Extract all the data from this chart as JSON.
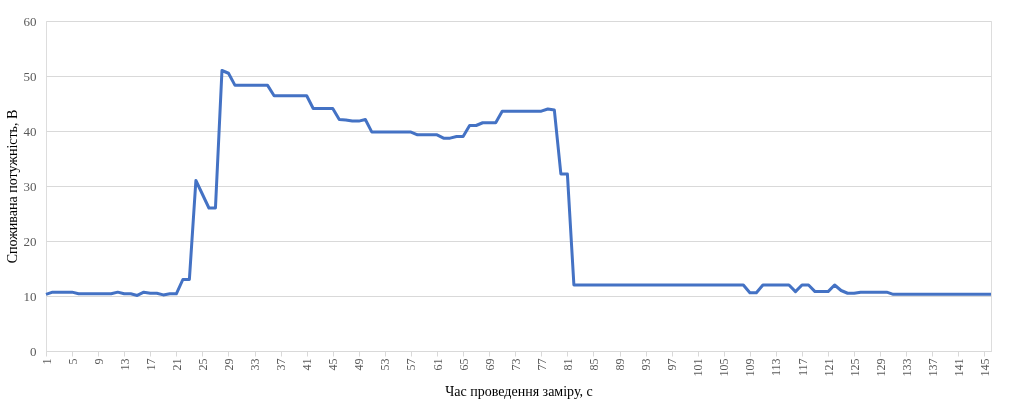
{
  "chart_data": {
    "type": "line",
    "xlabel": "Час проведення заміру, с",
    "ylabel": "Споживана потужність, В",
    "x": [
      1,
      2,
      3,
      4,
      5,
      6,
      7,
      8,
      9,
      10,
      11,
      12,
      13,
      14,
      15,
      16,
      17,
      18,
      19,
      20,
      21,
      22,
      23,
      24,
      25,
      26,
      27,
      28,
      29,
      30,
      31,
      32,
      33,
      34,
      35,
      36,
      37,
      38,
      39,
      40,
      41,
      42,
      43,
      44,
      45,
      46,
      47,
      48,
      49,
      50,
      51,
      52,
      53,
      54,
      55,
      56,
      57,
      58,
      59,
      60,
      61,
      62,
      63,
      64,
      65,
      66,
      67,
      68,
      69,
      70,
      71,
      72,
      73,
      74,
      75,
      76,
      77,
      78,
      79,
      80,
      81,
      82,
      83,
      84,
      85,
      86,
      87,
      88,
      89,
      90,
      91,
      92,
      93,
      94,
      95,
      96,
      97,
      98,
      99,
      100,
      101,
      102,
      103,
      104,
      105,
      106,
      107,
      108,
      109,
      110,
      111,
      112,
      113,
      114,
      115,
      116,
      117,
      118,
      119,
      120,
      121,
      122,
      123,
      124,
      125,
      126,
      127,
      128,
      129,
      130,
      131,
      132,
      133,
      134,
      135,
      136,
      137,
      138,
      139,
      140,
      141,
      142,
      143,
      144,
      145,
      146
    ],
    "series": [
      {
        "color": "#4472c4",
        "values": [
          10.3,
          10.7,
          10.7,
          10.7,
          10.7,
          10.4,
          10.4,
          10.4,
          10.4,
          10.4,
          10.4,
          10.7,
          10.4,
          10.4,
          10.1,
          10.7,
          10.5,
          10.5,
          10.2,
          10.4,
          10.4,
          13,
          13,
          31,
          28.5,
          26,
          26,
          51,
          50.5,
          48.3,
          48.3,
          48.3,
          48.3,
          48.3,
          48.3,
          46.4,
          46.4,
          46.4,
          46.4,
          46.4,
          46.4,
          44.1,
          44.1,
          44.1,
          44.1,
          42.1,
          42,
          41.8,
          41.8,
          42.1,
          39.8,
          39.8,
          39.8,
          39.8,
          39.8,
          39.8,
          39.8,
          39.3,
          39.3,
          39.3,
          39.3,
          38.7,
          38.7,
          39,
          39,
          41,
          41,
          41.5,
          41.5,
          41.5,
          43.6,
          43.6,
          43.6,
          43.6,
          43.6,
          43.6,
          43.6,
          44,
          43.8,
          32.2,
          32.2,
          12,
          12,
          12,
          12,
          12,
          12,
          12,
          12,
          12,
          12,
          12,
          12,
          12,
          12,
          12,
          12,
          12,
          12,
          12,
          12,
          12,
          12,
          12,
          12,
          12,
          12,
          12,
          10.6,
          10.6,
          12,
          12,
          12,
          12,
          12,
          10.8,
          12,
          12,
          10.8,
          10.8,
          10.8,
          12,
          11,
          10.5,
          10.5,
          10.7,
          10.7,
          10.7,
          10.7,
          10.7,
          10.3,
          10.3,
          10.3,
          10.3,
          10.3,
          10.3,
          10.3,
          10.3,
          10.3,
          10.3,
          10.3,
          10.3,
          10.3,
          10.3,
          10.3,
          10.3
        ]
      }
    ],
    "xlim": [
      1,
      146
    ],
    "xticks": [
      1,
      5,
      9,
      13,
      17,
      21,
      25,
      29,
      33,
      37,
      41,
      45,
      49,
      53,
      57,
      61,
      65,
      69,
      73,
      77,
      81,
      85,
      89,
      93,
      97,
      101,
      105,
      109,
      113,
      117,
      121,
      125,
      129,
      133,
      137,
      141,
      145
    ],
    "ylim": [
      0,
      60
    ],
    "yticks": [
      0,
      10,
      20,
      30,
      40,
      50,
      60
    ],
    "grid": "y",
    "legend": false,
    "marker": "none",
    "line_style": "solid"
  }
}
